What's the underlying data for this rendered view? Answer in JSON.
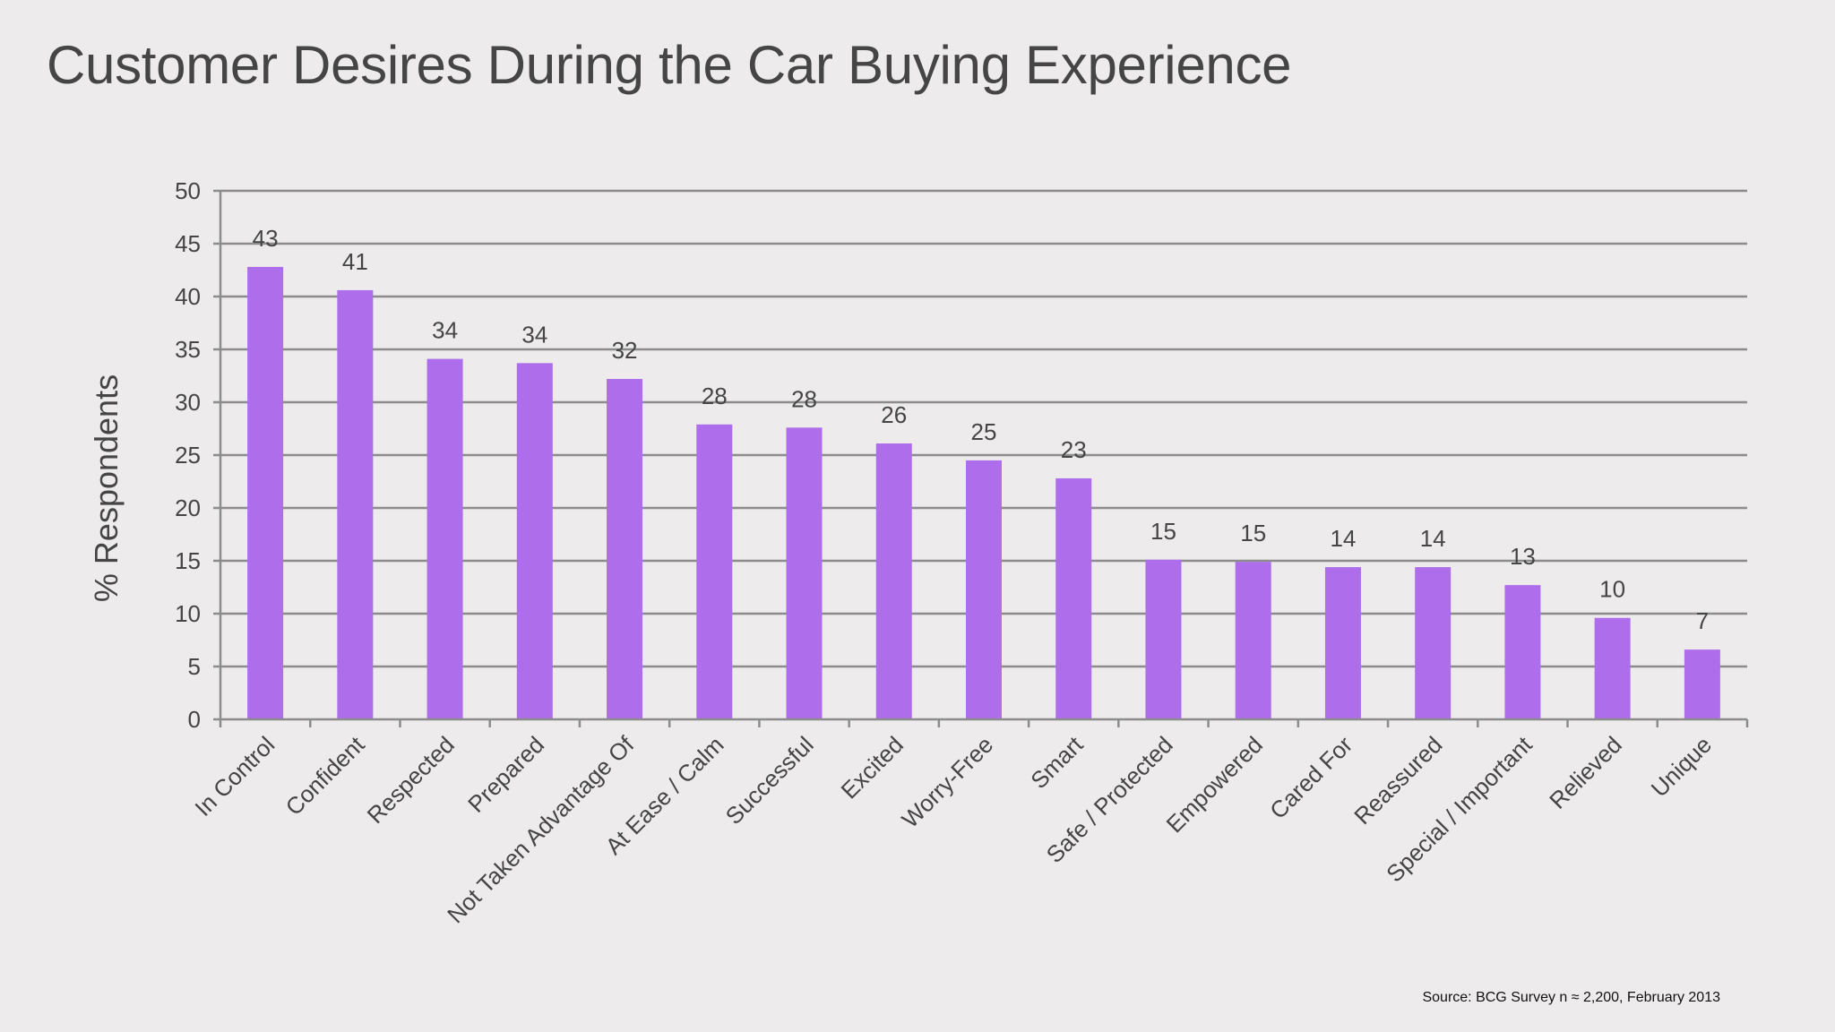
{
  "title": "Customer Desires During the Car Buying Experience",
  "source": "Source: BCG Survey n ≈ 2,200,  February 2013",
  "colors": {
    "bar": "#ae6dea",
    "grid": "#8c8c8c",
    "text": "#454545",
    "background": "#edebec"
  },
  "chart_data": {
    "type": "bar",
    "title": "",
    "xlabel": "",
    "ylabel": "% Respondents",
    "ylim": [
      0,
      50
    ],
    "yticks": [
      0,
      5,
      10,
      15,
      20,
      25,
      30,
      35,
      40,
      45,
      50
    ],
    "grid": true,
    "legend": "none",
    "categories": [
      "In Control",
      "Confident",
      "Respected",
      "Prepared",
      "Not Taken Advantage Of",
      "At Ease / Calm",
      "Successful",
      "Excited",
      "Worry-Free",
      "Smart",
      "Safe / Protected",
      "Empowered",
      "Cared For",
      "Reassured",
      "Special / Important",
      "Relieved",
      "Unique"
    ],
    "values": [
      42.8,
      40.6,
      34.1,
      33.7,
      32.2,
      27.9,
      27.6,
      26.1,
      24.5,
      22.8,
      15.1,
      14.9,
      14.4,
      14.4,
      12.7,
      9.6,
      6.6
    ],
    "data_labels": [
      "43",
      "41",
      "34",
      "34",
      "32",
      "28",
      "28",
      "26",
      "25",
      "23",
      "15",
      "15",
      "14",
      "14",
      "13",
      "10",
      "7"
    ]
  }
}
